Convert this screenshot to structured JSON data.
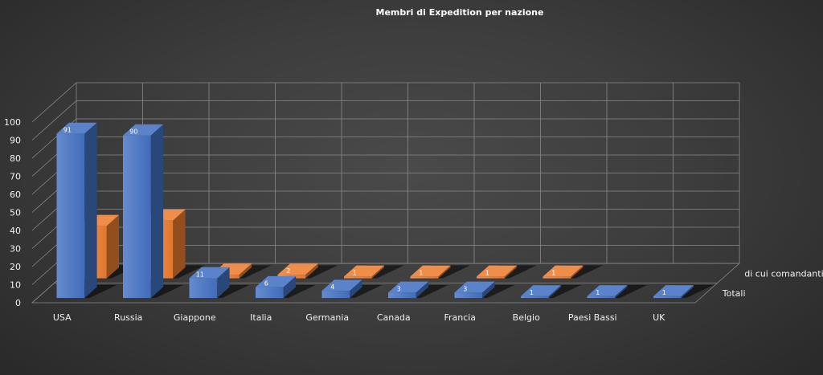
{
  "chart_data": {
    "type": "bar",
    "subtype": "3d-column",
    "title": "Membri di Expedition per nazione",
    "categories": [
      "USA",
      "Russia",
      "Giappone",
      "Italia",
      "Germania",
      "Canada",
      "Francia",
      "Belgio",
      "Paesi Bassi",
      "UK"
    ],
    "series": [
      {
        "name": "Totali",
        "color": "#4472c4",
        "values": [
          91,
          90,
          11,
          6,
          4,
          3,
          3,
          1,
          1,
          1
        ]
      },
      {
        "name": "di cui comandanti",
        "color": "#ed7d31",
        "values": [
          29,
          32,
          2,
          2,
          1,
          1,
          1,
          1,
          null,
          null
        ]
      }
    ],
    "ylim": [
      0,
      100
    ],
    "yticks": [
      0,
      10,
      20,
      30,
      40,
      50,
      60,
      70,
      80,
      90,
      100
    ],
    "grid": true,
    "data_labels": true,
    "legend": "series labels on depth axis (right)"
  }
}
